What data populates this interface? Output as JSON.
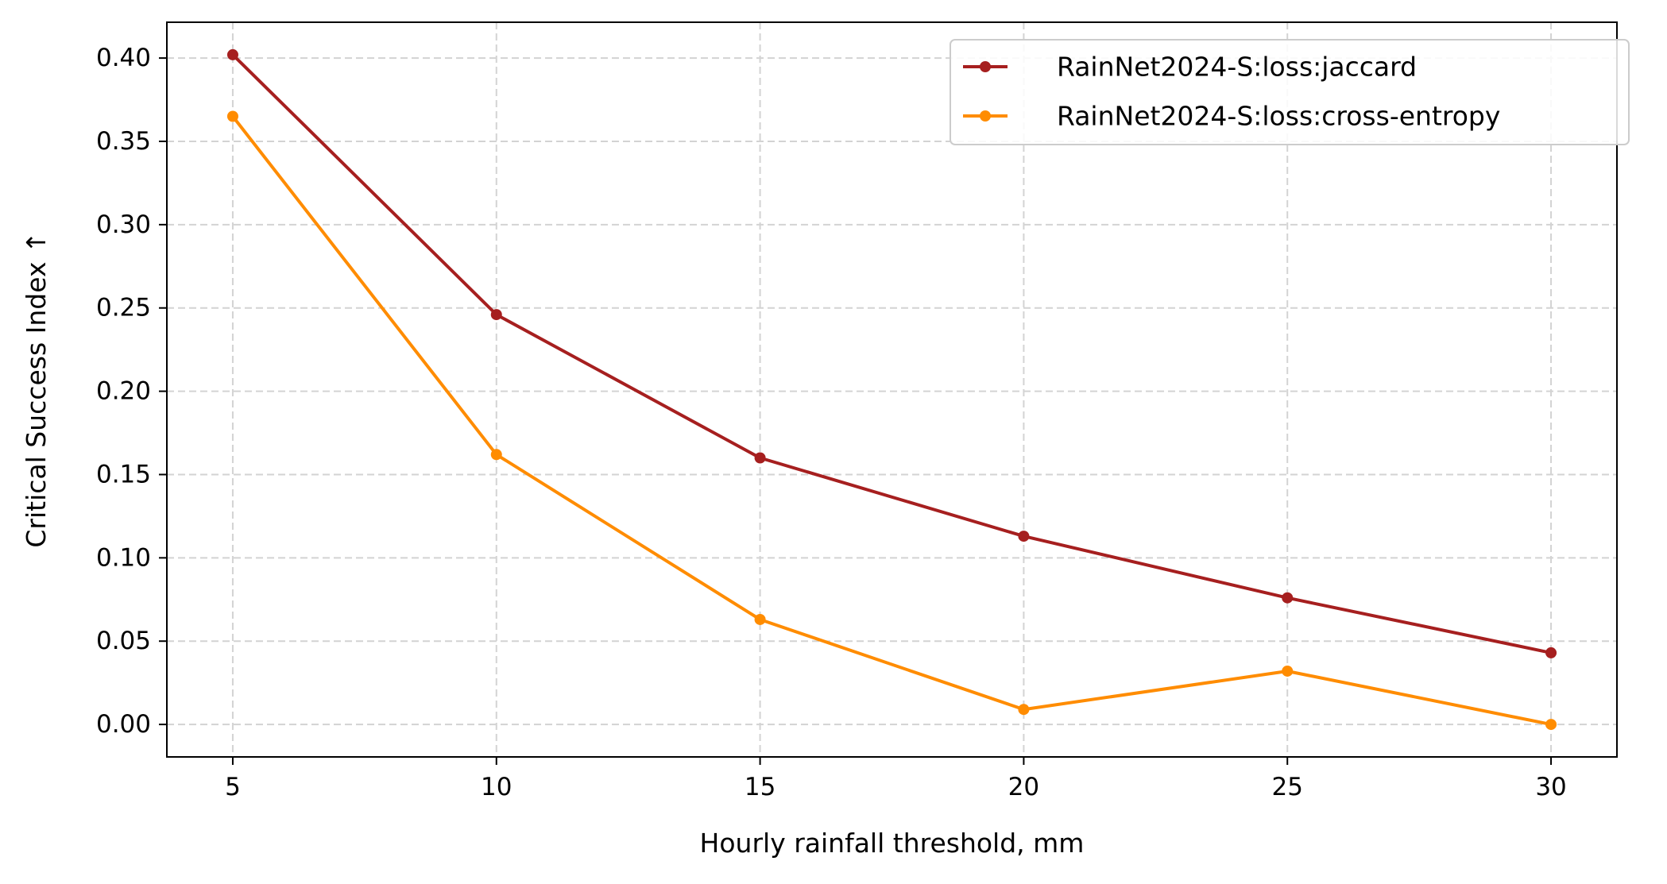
{
  "chart_data": {
    "type": "line",
    "title": "",
    "xlabel": "Hourly rainfall threshold, mm",
    "ylabel": "Critical Success Index ↑",
    "x": [
      5,
      10,
      15,
      20,
      25,
      30
    ],
    "xticks": [
      5,
      10,
      15,
      20,
      25,
      30
    ],
    "xtick_labels": [
      "5",
      "10",
      "15",
      "20",
      "25",
      "30"
    ],
    "yticks": [
      0.0,
      0.05,
      0.1,
      0.15,
      0.2,
      0.25,
      0.3,
      0.35,
      0.4
    ],
    "ytick_labels": [
      "0.00",
      "0.05",
      "0.10",
      "0.15",
      "0.20",
      "0.25",
      "0.30",
      "0.35",
      "0.40"
    ],
    "xlim": [
      3.75,
      31.25
    ],
    "ylim": [
      -0.0195,
      0.4215
    ],
    "grid": true,
    "legend_position": "top-right",
    "series": [
      {
        "name": "RainNet2024-S:loss:jaccard",
        "color": "#a61f1f",
        "values": [
          0.402,
          0.246,
          0.16,
          0.113,
          0.076,
          0.043
        ]
      },
      {
        "name": "RainNet2024-S:loss:cross-entropy",
        "color": "#ff8c00",
        "values": [
          0.365,
          0.162,
          0.063,
          0.009,
          0.032,
          0.0
        ]
      }
    ]
  }
}
